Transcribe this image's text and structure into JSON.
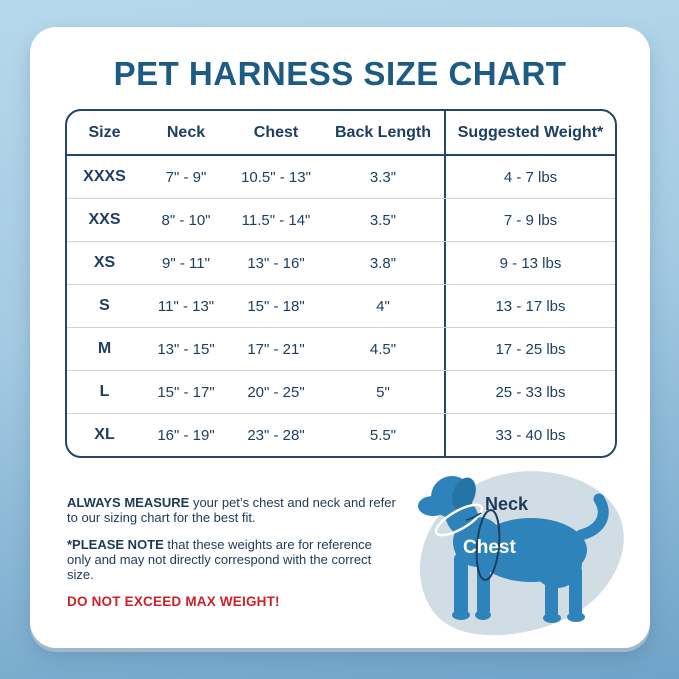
{
  "title": "PET HARNESS SIZE CHART",
  "table": {
    "columns": [
      "Size",
      "Neck",
      "Chest",
      "Back Length",
      "Suggested Weight*"
    ],
    "rows": [
      [
        "XXXS",
        "7\" - 9\"",
        "10.5\" - 13\"",
        "3.3\"",
        "4 - 7 lbs"
      ],
      [
        "XXS",
        "8\" - 10\"",
        "11.5\" - 14\"",
        "3.5\"",
        "7 - 9 lbs"
      ],
      [
        "XS",
        "9\" - 11\"",
        "13\" - 16\"",
        "3.8\"",
        "9 - 13 lbs"
      ],
      [
        "S",
        "11\" - 13\"",
        "15\" - 18\"",
        "4\"",
        "13 - 17 lbs"
      ],
      [
        "M",
        "13\" - 15\"",
        "17\" - 21\"",
        "4.5\"",
        "17 - 25 lbs"
      ],
      [
        "L",
        "15\" - 17\"",
        "20\" - 25\"",
        "5\"",
        "25 - 33 lbs"
      ],
      [
        "XL",
        "16\" - 19\"",
        "23\" - 28\"",
        "5.5\"",
        "33 - 40 lbs"
      ]
    ]
  },
  "notes": {
    "measure": {
      "bold": "ALWAYS MEASURE",
      "text": " your pet’s chest and neck and refer to our sizing chart for the best fit."
    },
    "reference": {
      "bold": "*PLEASE NOTE",
      "text": " that these weights are for reference only and may not directly correspond with the correct size."
    },
    "warning": "DO NOT EXCEED MAX WEIGHT!"
  },
  "diagram": {
    "neck_label": "Neck",
    "chest_label": "Chest"
  },
  "colors": {
    "title_blue": "#1d5b85",
    "table_navy": "#1d3f61",
    "warning_red": "#cc2127",
    "dog_blue": "#2e84ba",
    "blob_blue": "#d0dde5",
    "background_top": "#b6d8ec",
    "background_bottom": "#6fa3c8"
  }
}
